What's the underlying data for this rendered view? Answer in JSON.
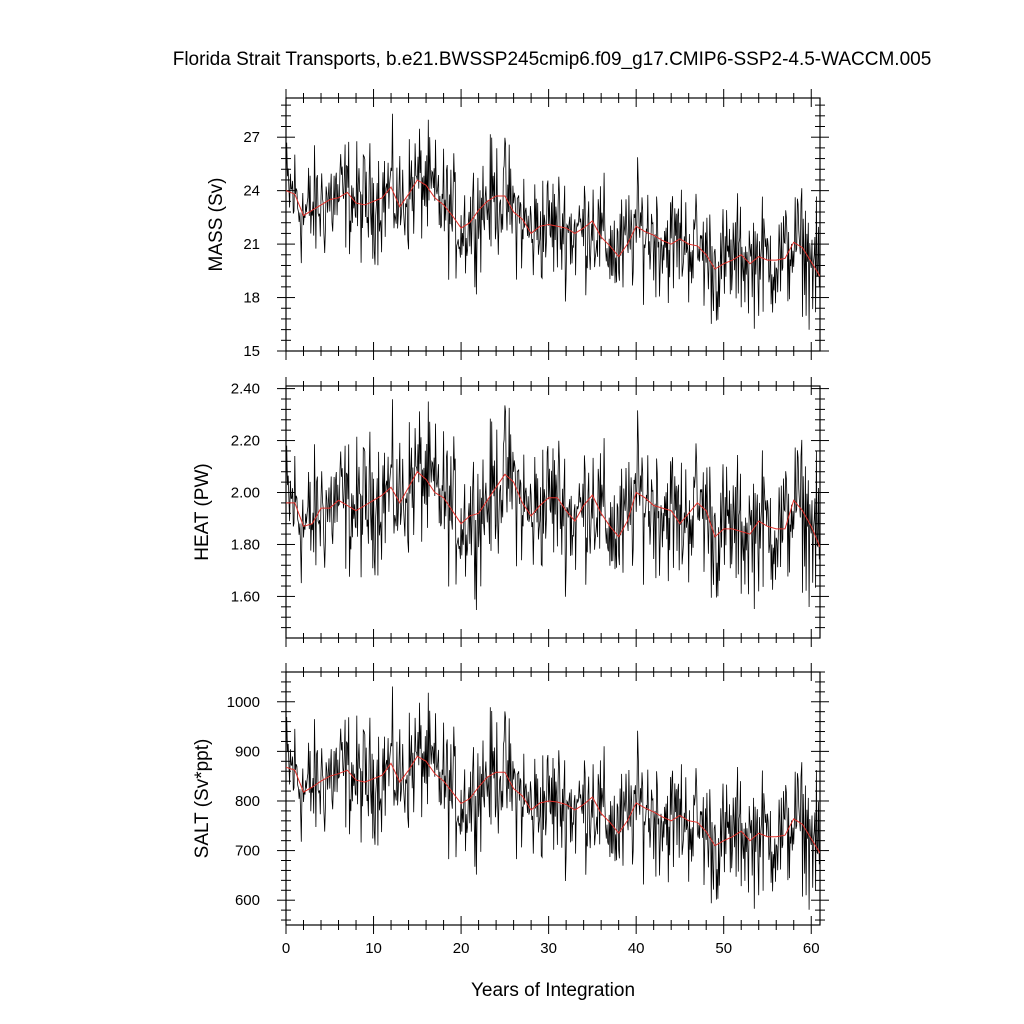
{
  "title": "Florida Strait Transports, b.e21.BWSSP245cmip6.f09_g17.CMIP6-SSP2-4.5-WACCM.005",
  "xlabel": "Years of Integration",
  "chart_data": [
    {
      "type": "line",
      "ylabel": "MASS (Sv)",
      "xlim": [
        0,
        61
      ],
      "ylim": [
        15,
        29.2
      ],
      "yticks": [
        15,
        18,
        21,
        24,
        27
      ],
      "yticklabels": [
        "15",
        "18",
        "21",
        "24",
        "27"
      ],
      "xticks": [
        0,
        10,
        20,
        30,
        40,
        50,
        60
      ],
      "xticklabels": [
        "0",
        "10",
        "20",
        "30",
        "40",
        "50",
        "60"
      ],
      "series": [
        {
          "type": "monthly",
          "color": "#000000",
          "x": [
            0,
            1,
            2,
            3,
            4,
            5,
            6,
            7,
            8,
            9,
            10,
            11,
            12,
            13,
            14,
            15,
            16,
            17,
            18,
            19,
            20,
            21,
            22,
            23,
            24,
            25,
            26,
            27,
            28,
            29,
            30,
            31,
            32,
            33,
            34,
            35,
            36,
            37,
            38,
            39,
            40,
            41,
            42,
            43,
            44,
            45,
            46,
            47,
            48,
            49,
            50,
            51,
            52,
            53,
            54,
            55,
            56,
            57,
            58,
            59,
            60,
            61
          ],
          "y": [
            24.0,
            23.8,
            22.6,
            22.9,
            23.2,
            23.5,
            23.6,
            23.9,
            23.3,
            23.2,
            23.4,
            23.6,
            24.2,
            23.1,
            23.8,
            24.6,
            24.3,
            23.6,
            23.2,
            22.6,
            21.9,
            22.2,
            22.9,
            23.4,
            23.7,
            23.7,
            22.8,
            22.4,
            21.6,
            22.0,
            22.1,
            22.0,
            21.9,
            21.6,
            21.9,
            22.3,
            21.4,
            20.9,
            20.3,
            21.0,
            22.0,
            21.7,
            21.5,
            21.2,
            21.0,
            21.3,
            21.0,
            20.9,
            20.4,
            19.6,
            19.9,
            20.1,
            20.4,
            19.9,
            20.3,
            20.1,
            20.1,
            20.2,
            21.1,
            20.8,
            20.0,
            19.2
          ],
          "amplitude": 1.6
        },
        {
          "type": "annual_mean",
          "color": "#e0302a",
          "x": [
            0,
            1,
            2,
            3,
            4,
            5,
            6,
            7,
            8,
            9,
            10,
            11,
            12,
            13,
            14,
            15,
            16,
            17,
            18,
            19,
            20,
            21,
            22,
            23,
            24,
            25,
            26,
            27,
            28,
            29,
            30,
            31,
            32,
            33,
            34,
            35,
            36,
            37,
            38,
            39,
            40,
            41,
            42,
            43,
            44,
            45,
            46,
            47,
            48,
            49,
            50,
            51,
            52,
            53,
            54,
            55,
            56,
            57,
            58,
            59,
            60,
            61
          ],
          "y": [
            24.0,
            23.8,
            22.6,
            22.9,
            23.2,
            23.5,
            23.6,
            23.9,
            23.3,
            23.2,
            23.4,
            23.6,
            24.2,
            23.1,
            23.8,
            24.6,
            24.3,
            23.6,
            23.2,
            22.6,
            21.9,
            22.2,
            22.9,
            23.4,
            23.7,
            23.7,
            22.8,
            22.4,
            21.6,
            22.0,
            22.1,
            22.0,
            21.9,
            21.6,
            21.9,
            22.3,
            21.4,
            20.9,
            20.3,
            21.0,
            22.0,
            21.7,
            21.5,
            21.2,
            21.0,
            21.3,
            21.0,
            20.9,
            20.4,
            19.6,
            19.9,
            20.1,
            20.4,
            19.9,
            20.3,
            20.1,
            20.1,
            20.2,
            21.1,
            20.8,
            20.0,
            19.2
          ]
        }
      ]
    },
    {
      "type": "line",
      "ylabel": "HEAT (PW)",
      "xlim": [
        0,
        61
      ],
      "ylim": [
        1.44,
        2.41
      ],
      "yticks": [
        1.6,
        1.8,
        2.0,
        2.2,
        2.4
      ],
      "yticklabels": [
        "1.60",
        "1.80",
        "2.00",
        "2.20",
        "2.40"
      ],
      "xticks": [
        0,
        10,
        20,
        30,
        40,
        50,
        60
      ],
      "xticklabels": [
        "0",
        "10",
        "20",
        "30",
        "40",
        "50",
        "60"
      ],
      "series": [
        {
          "type": "monthly",
          "color": "#000000",
          "x": [
            0,
            1,
            2,
            3,
            4,
            5,
            6,
            7,
            8,
            9,
            10,
            11,
            12,
            13,
            14,
            15,
            16,
            17,
            18,
            19,
            20,
            21,
            22,
            23,
            24,
            25,
            26,
            27,
            28,
            29,
            30,
            31,
            32,
            33,
            34,
            35,
            36,
            37,
            38,
            39,
            40,
            41,
            42,
            43,
            44,
            45,
            46,
            47,
            48,
            49,
            50,
            51,
            52,
            53,
            54,
            55,
            56,
            57,
            58,
            59,
            60,
            61
          ],
          "y": [
            1.96,
            1.96,
            1.87,
            1.88,
            1.94,
            1.94,
            1.97,
            1.95,
            1.93,
            1.95,
            1.97,
            1.99,
            2.02,
            1.96,
            2.02,
            2.08,
            2.05,
            2.0,
            1.98,
            1.93,
            1.88,
            1.91,
            1.92,
            1.97,
            2.02,
            2.07,
            2.04,
            1.96,
            1.91,
            1.95,
            1.98,
            1.98,
            1.93,
            1.89,
            1.95,
            1.99,
            1.92,
            1.87,
            1.83,
            1.89,
            2.0,
            1.98,
            1.95,
            1.94,
            1.93,
            1.88,
            1.92,
            1.96,
            1.93,
            1.83,
            1.86,
            1.86,
            1.85,
            1.84,
            1.89,
            1.87,
            1.86,
            1.86,
            1.97,
            1.93,
            1.87,
            1.79
          ],
          "amplitude": 0.13
        },
        {
          "type": "annual_mean",
          "color": "#e0302a",
          "x": [
            0,
            1,
            2,
            3,
            4,
            5,
            6,
            7,
            8,
            9,
            10,
            11,
            12,
            13,
            14,
            15,
            16,
            17,
            18,
            19,
            20,
            21,
            22,
            23,
            24,
            25,
            26,
            27,
            28,
            29,
            30,
            31,
            32,
            33,
            34,
            35,
            36,
            37,
            38,
            39,
            40,
            41,
            42,
            43,
            44,
            45,
            46,
            47,
            48,
            49,
            50,
            51,
            52,
            53,
            54,
            55,
            56,
            57,
            58,
            59,
            60,
            61
          ],
          "y": [
            1.96,
            1.96,
            1.87,
            1.88,
            1.94,
            1.94,
            1.97,
            1.95,
            1.93,
            1.95,
            1.97,
            1.99,
            2.02,
            1.96,
            2.02,
            2.08,
            2.05,
            2.0,
            1.98,
            1.93,
            1.88,
            1.91,
            1.92,
            1.97,
            2.02,
            2.07,
            2.04,
            1.96,
            1.91,
            1.95,
            1.98,
            1.98,
            1.93,
            1.89,
            1.95,
            1.99,
            1.92,
            1.87,
            1.83,
            1.89,
            2.0,
            1.98,
            1.95,
            1.94,
            1.93,
            1.88,
            1.92,
            1.96,
            1.93,
            1.83,
            1.86,
            1.86,
            1.85,
            1.84,
            1.89,
            1.87,
            1.86,
            1.86,
            1.97,
            1.93,
            1.87,
            1.79
          ]
        }
      ]
    },
    {
      "type": "line",
      "ylabel": "SALT (Sv*ppt)",
      "xlim": [
        0,
        61
      ],
      "ylim": [
        550,
        1060
      ],
      "yticks": [
        600,
        700,
        800,
        900,
        1000
      ],
      "yticklabels": [
        "600",
        "700",
        "800",
        "900",
        "1000"
      ],
      "xticks": [
        0,
        10,
        20,
        30,
        40,
        50,
        60
      ],
      "xticklabels": [
        "0",
        "10",
        "20",
        "30",
        "40",
        "50",
        "60"
      ],
      "series": [
        {
          "type": "monthly",
          "color": "#000000",
          "x": [
            0,
            1,
            2,
            3,
            4,
            5,
            6,
            7,
            8,
            9,
            10,
            11,
            12,
            13,
            14,
            15,
            16,
            17,
            18,
            19,
            20,
            21,
            22,
            23,
            24,
            25,
            26,
            27,
            28,
            29,
            30,
            31,
            32,
            33,
            34,
            35,
            36,
            37,
            38,
            39,
            40,
            41,
            42,
            43,
            44,
            45,
            46,
            47,
            48,
            49,
            50,
            51,
            52,
            53,
            54,
            55,
            56,
            57,
            58,
            59,
            60,
            61
          ],
          "y": [
            868,
            862,
            818,
            828,
            840,
            850,
            855,
            862,
            842,
            838,
            845,
            852,
            876,
            838,
            862,
            890,
            880,
            855,
            840,
            818,
            795,
            805,
            828,
            848,
            858,
            858,
            825,
            810,
            782,
            796,
            800,
            798,
            793,
            782,
            793,
            808,
            775,
            757,
            735,
            760,
            796,
            786,
            778,
            768,
            760,
            771,
            760,
            757,
            738,
            710,
            720,
            728,
            739,
            720,
            735,
            728,
            728,
            731,
            764,
            753,
            724,
            695
          ],
          "amplitude": 60
        },
        {
          "type": "annual_mean",
          "color": "#e0302a",
          "x": [
            0,
            1,
            2,
            3,
            4,
            5,
            6,
            7,
            8,
            9,
            10,
            11,
            12,
            13,
            14,
            15,
            16,
            17,
            18,
            19,
            20,
            21,
            22,
            23,
            24,
            25,
            26,
            27,
            28,
            29,
            30,
            31,
            32,
            33,
            34,
            35,
            36,
            37,
            38,
            39,
            40,
            41,
            42,
            43,
            44,
            45,
            46,
            47,
            48,
            49,
            50,
            51,
            52,
            53,
            54,
            55,
            56,
            57,
            58,
            59,
            60,
            61
          ],
          "y": [
            868,
            862,
            818,
            828,
            840,
            850,
            855,
            862,
            842,
            838,
            845,
            852,
            876,
            838,
            862,
            890,
            880,
            855,
            840,
            818,
            795,
            805,
            828,
            848,
            858,
            858,
            825,
            810,
            782,
            796,
            800,
            798,
            793,
            782,
            793,
            808,
            775,
            757,
            735,
            760,
            796,
            786,
            778,
            768,
            760,
            771,
            760,
            757,
            738,
            710,
            720,
            728,
            739,
            720,
            735,
            728,
            728,
            731,
            764,
            753,
            724,
            695
          ]
        }
      ]
    }
  ]
}
